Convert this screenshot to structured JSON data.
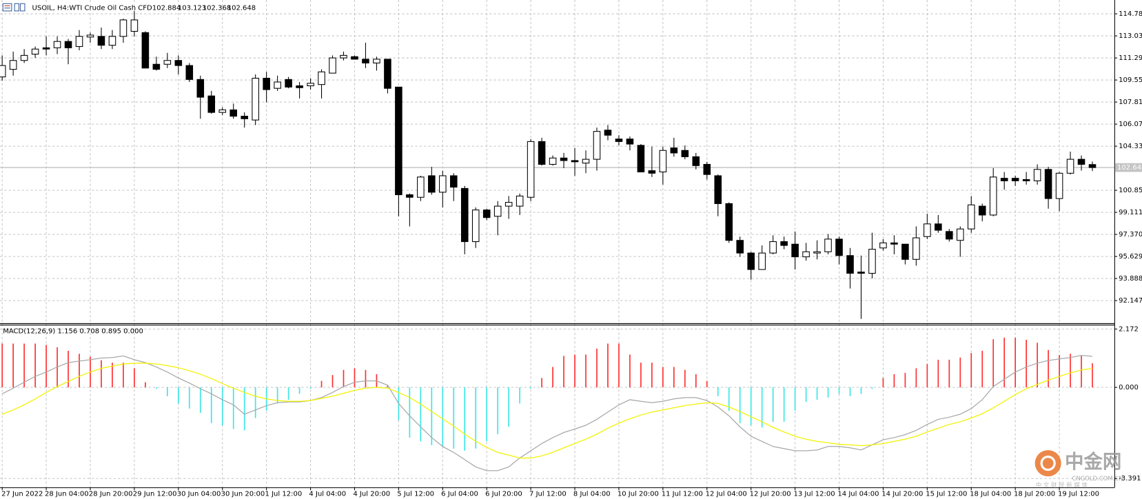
{
  "chart_data": [
    {
      "type": "candlestick",
      "title": "USOIL, H4:",
      "subtitle": "WTI Crude Oil Cash CFD",
      "categories": [
        "27 Jun 2022",
        null,
        null,
        null,
        "28 Jun 04:00",
        null,
        null,
        null,
        "28 Jun 20:00",
        null,
        null,
        null,
        "29 Jun 12:00",
        null,
        null,
        null,
        "30 Jun 04:00",
        null,
        null,
        null,
        "30 Jun 20:00",
        null,
        null,
        null,
        "1 Jul 12:00",
        null,
        null,
        null,
        "4 Jul 04:00",
        null,
        null,
        null,
        "4 Jul 20:00",
        null,
        null,
        null,
        "5 Jul 12:00",
        null,
        null,
        null,
        "6 Jul 04:00",
        null,
        null,
        null,
        "6 Jul 20:00",
        null,
        null,
        null,
        "7 Jul 12:00",
        null,
        null,
        null,
        "8 Jul 04:00",
        null,
        null,
        null,
        "10 Jul 20:00",
        null,
        null,
        null,
        "11 Jul 12:00",
        null,
        null,
        null,
        "12 Jul 04:00",
        null,
        null,
        null,
        "12 Jul 20:00",
        null,
        null,
        null,
        "13 Jul 12:00",
        null,
        null,
        null,
        "14 Jul 04:00",
        null,
        null,
        null,
        "14 Jul 20:00",
        null,
        null,
        null,
        "15 Jul 12:00",
        null,
        null,
        null,
        "18 Jul 04:00",
        null,
        null,
        null,
        "18 Jul 20:00",
        null,
        null,
        null,
        "19 Jul 12:00",
        null,
        null,
        null
      ],
      "open": [
        109.8,
        110.4,
        111.1,
        111.6,
        112.1,
        112.1,
        112.6,
        112.2,
        112.95,
        113.0,
        112.3,
        113.0,
        113.4,
        113.3,
        110.8,
        110.8,
        111.1,
        110.7,
        109.6,
        108.3,
        107.0,
        107.2,
        106.7,
        106.4,
        109.7,
        108.9,
        109.6,
        109.1,
        109.1,
        109.2,
        110.1,
        111.3,
        111.4,
        111.2,
        110.9,
        111.2,
        109.0,
        100.5,
        100.3,
        102.0,
        100.7,
        102.0,
        101.0,
        96.8,
        99.3,
        98.8,
        99.6,
        99.6,
        100.3,
        104.7,
        102.9,
        103.4,
        103.2,
        103.0,
        103.3,
        105.6,
        104.9,
        104.9,
        104.4,
        102.4,
        102.3,
        104.2,
        104.0,
        103.5,
        102.9,
        102.0,
        99.8,
        96.9,
        95.9,
        94.6,
        95.9,
        96.8,
        96.6,
        95.6,
        95.9,
        96.0,
        97.0,
        95.7,
        94.4,
        94.3,
        96.3,
        96.7,
        96.6,
        95.4,
        97.2,
        98.2,
        97.6,
        96.9,
        97.8,
        99.6,
        98.9,
        101.8,
        101.8,
        101.7,
        101.6,
        102.5,
        100.2,
        102.2,
        103.3,
        102.884
      ],
      "high": [
        111.5,
        111.8,
        112.0,
        112.2,
        113.0,
        113.0,
        112.8,
        113.5,
        113.3,
        113.7,
        113.5,
        114.4,
        115.0,
        113.4,
        111.4,
        111.7,
        111.5,
        110.9,
        109.9,
        108.7,
        107.4,
        107.7,
        107.0,
        110.0,
        110.2,
        109.9,
        109.8,
        109.4,
        109.7,
        110.4,
        111.5,
        111.8,
        111.5,
        112.5,
        111.4,
        111.2,
        109.0,
        100.6,
        102.0,
        102.7,
        102.4,
        102.2,
        101.2,
        99.5,
        99.4,
        100.0,
        100.4,
        100.6,
        104.9,
        105.0,
        103.6,
        103.8,
        104.2,
        104.0,
        105.8,
        106.0,
        105.2,
        105.1,
        104.5,
        104.3,
        104.3,
        105.0,
        104.4,
        103.8,
        103.1,
        102.1,
        99.9,
        97.2,
        96.0,
        96.5,
        97.3,
        97.2,
        97.6,
        96.7,
        96.9,
        97.4,
        97.2,
        96.3,
        95.7,
        97.5,
        97.0,
        97.3,
        96.6,
        98.0,
        99.0,
        98.9,
        97.8,
        98.0,
        100.4,
        99.8,
        102.6,
        102.3,
        102.0,
        102.3,
        102.9,
        102.7,
        102.3,
        103.9,
        103.6,
        103.123
      ],
      "low": [
        109.5,
        109.9,
        110.9,
        111.3,
        111.5,
        111.6,
        110.8,
        111.9,
        112.5,
        112.0,
        112.0,
        112.5,
        113.0,
        110.5,
        110.3,
        110.5,
        110.0,
        109.4,
        106.5,
        106.9,
        106.8,
        106.5,
        105.8,
        106.0,
        107.8,
        108.7,
        108.9,
        108.1,
        108.8,
        108.1,
        110.1,
        111.1,
        111.2,
        110.5,
        110.3,
        108.5,
        98.8,
        98.0,
        100.0,
        100.5,
        99.5,
        100.0,
        95.8,
        96.3,
        98.5,
        97.3,
        98.6,
        98.9,
        100.0,
        102.8,
        102.8,
        102.6,
        102.0,
        102.2,
        102.4,
        104.8,
        104.4,
        104.0,
        102.3,
        101.9,
        101.3,
        103.5,
        103.3,
        102.5,
        101.7,
        98.8,
        96.7,
        95.6,
        93.8,
        94.6,
        95.8,
        96.2,
        94.6,
        95.3,
        95.4,
        95.8,
        95.0,
        93.1,
        90.7,
        93.9,
        96.1,
        95.8,
        95.0,
        94.9,
        97.0,
        97.5,
        96.8,
        95.6,
        97.5,
        98.4,
        98.8,
        100.9,
        101.2,
        101.3,
        101.3,
        99.4,
        99.2,
        102.1,
        102.4,
        102.368
      ],
      "close": [
        110.7,
        111.1,
        111.5,
        112.0,
        112.0,
        112.6,
        112.1,
        113.0,
        113.1,
        112.3,
        113.0,
        114.3,
        114.3,
        110.5,
        110.4,
        111.1,
        110.7,
        109.6,
        108.2,
        107.0,
        107.2,
        106.7,
        106.5,
        109.7,
        108.8,
        109.4,
        109.0,
        108.95,
        109.3,
        110.2,
        111.3,
        111.5,
        111.2,
        110.9,
        111.2,
        108.9,
        100.5,
        100.3,
        101.9,
        100.7,
        102.0,
        101.1,
        96.8,
        99.3,
        98.7,
        99.6,
        99.9,
        100.4,
        104.7,
        102.9,
        103.4,
        103.2,
        103.1,
        103.3,
        105.5,
        105.2,
        104.7,
        104.5,
        102.3,
        102.2,
        104.0,
        103.8,
        103.5,
        102.8,
        102.1,
        99.8,
        96.9,
        95.9,
        94.6,
        95.9,
        96.8,
        96.5,
        95.6,
        96.0,
        96.0,
        97.0,
        95.7,
        94.3,
        94.3,
        96.2,
        96.7,
        96.6,
        95.4,
        97.1,
        98.2,
        97.7,
        97.0,
        97.8,
        99.7,
        98.9,
        101.9,
        101.6,
        101.6,
        101.6,
        102.5,
        100.2,
        102.2,
        103.3,
        102.9,
        102.648
      ],
      "up_color": "#ffffff",
      "down_color": "#000000",
      "ylim": [
        90.42,
        115.7
      ],
      "yticks": [
        {
          "value": 114.78,
          "label": "114.780"
        },
        113.039,
        111.298,
        109.557,
        107.816,
        106.075,
        104.334,
        100.852,
        99.111,
        {
          "value": 97.37,
          "label": "97.370"
        },
        95.629,
        93.888,
        92.147
      ],
      "grid": true,
      "last_price_line": true
    },
    {
      "type": "macd",
      "title": "MACD(12,26,9) 1.156 0.708 0.895 0.000",
      "series": [
        {
          "type": "histogram",
          "up_color": "#ff3030",
          "down_color": "#3ee6e6",
          "values": [
            1.63,
            1.63,
            1.63,
            1.63,
            1.58,
            1.49,
            1.36,
            1.25,
            1.14,
            1.01,
            0.92,
            0.92,
            0.71,
            0.19,
            -0.05,
            -0.33,
            -0.6,
            -0.79,
            -0.95,
            -1.33,
            -1.41,
            -1.55,
            -1.6,
            -1.14,
            -0.87,
            -0.6,
            -0.46,
            -0.24,
            -0.05,
            0.24,
            0.46,
            0.65,
            0.71,
            0.65,
            0.49,
            0.08,
            -1.22,
            -1.87,
            -2.01,
            -2.15,
            -2.2,
            -2.28,
            -2.36,
            -2.28,
            -2.01,
            -1.74,
            -1.47,
            -0.6,
            -0.05,
            0.35,
            0.76,
            1.17,
            1.22,
            1.22,
            1.44,
            1.63,
            1.63,
            1.22,
            0.92,
            0.92,
            0.76,
            0.76,
            0.65,
            0.49,
            0.24,
            -0.33,
            -0.87,
            -1.33,
            -1.41,
            -1.49,
            -1.28,
            -1.28,
            -0.87,
            -0.54,
            -0.46,
            -0.38,
            -0.24,
            -0.33,
            -0.24,
            -0.05,
            0.35,
            0.49,
            0.54,
            0.71,
            0.87,
            1.03,
            1.03,
            1.11,
            1.28,
            1.36,
            1.79,
            1.85,
            1.85,
            1.77,
            1.66,
            1.39,
            1.2,
            1.25,
            1.17,
            0.895
          ]
        },
        {
          "type": "line",
          "color": "#a8a8a8",
          "values": [
            -0.24,
            -0.03,
            0.19,
            0.41,
            0.57,
            0.76,
            0.92,
            0.98,
            1.03,
            1.09,
            1.11,
            1.17,
            1.03,
            0.92,
            0.76,
            0.57,
            0.35,
            0.16,
            -0.05,
            -0.24,
            -0.46,
            -0.65,
            -1.0,
            -0.84,
            -0.68,
            -0.57,
            -0.54,
            -0.54,
            -0.49,
            -0.38,
            -0.19,
            0.03,
            0.19,
            0.24,
            0.24,
            0.08,
            -0.6,
            -1.06,
            -1.47,
            -1.87,
            -2.2,
            -2.42,
            -2.69,
            -2.96,
            -3.1,
            -3.1,
            -2.96,
            -2.63,
            -2.36,
            -2.09,
            -1.87,
            -1.68,
            -1.55,
            -1.41,
            -1.19,
            -0.92,
            -0.65,
            -0.46,
            -0.52,
            -0.57,
            -0.52,
            -0.43,
            -0.38,
            -0.38,
            -0.49,
            -0.73,
            -1.06,
            -1.47,
            -1.82,
            -2.01,
            -2.2,
            -2.28,
            -2.36,
            -2.36,
            -2.33,
            -2.2,
            -2.2,
            -2.25,
            -2.33,
            -2.14,
            -1.95,
            -1.87,
            -1.76,
            -1.6,
            -1.38,
            -1.19,
            -1.11,
            -1.0,
            -0.79,
            -0.46,
            0.03,
            0.3,
            0.57,
            0.76,
            0.9,
            1.0,
            1.06,
            1.11,
            1.19,
            1.156
          ]
        },
        {
          "type": "line",
          "color": "#f2f200",
          "values": [
            -1.0,
            -0.84,
            -0.65,
            -0.43,
            -0.19,
            0.03,
            0.22,
            0.41,
            0.57,
            0.71,
            0.79,
            0.87,
            0.9,
            0.9,
            0.87,
            0.81,
            0.73,
            0.62,
            0.49,
            0.33,
            0.14,
            -0.03,
            -0.19,
            -0.33,
            -0.43,
            -0.49,
            -0.52,
            -0.52,
            -0.49,
            -0.41,
            -0.33,
            -0.22,
            -0.11,
            -0.03,
            0,
            -0.03,
            -0.19,
            -0.38,
            -0.62,
            -0.9,
            -1.17,
            -1.44,
            -1.74,
            -2.01,
            -2.23,
            -2.42,
            -2.52,
            -2.63,
            -2.63,
            -2.55,
            -2.42,
            -2.25,
            -2.09,
            -1.93,
            -1.74,
            -1.52,
            -1.33,
            -1.17,
            -1.03,
            -0.92,
            -0.84,
            -0.76,
            -0.68,
            -0.62,
            -0.57,
            -0.6,
            -0.73,
            -0.9,
            -1.09,
            -1.28,
            -1.49,
            -1.66,
            -1.82,
            -1.93,
            -2.01,
            -2.06,
            -2.12,
            -2.14,
            -2.17,
            -2.14,
            -2.09,
            -2.01,
            -1.93,
            -1.82,
            -1.66,
            -1.52,
            -1.38,
            -1.28,
            -1.14,
            -0.98,
            -0.76,
            -0.52,
            -0.27,
            -0.05,
            0.11,
            0.27,
            0.41,
            0.54,
            0.65,
            0.708
          ]
        }
      ],
      "ylim": [
        -3.72,
        2.28
      ],
      "yticks": [
        2.172,
        {
          "value": 0,
          "label": "0.000"
        },
        -3.391
      ],
      "grid": true
    }
  ],
  "watermark": {
    "brand": "中金网",
    "site": "CNGOLD.COM.CN",
    "tagline": "中 文 财 经 新 媒 体"
  }
}
